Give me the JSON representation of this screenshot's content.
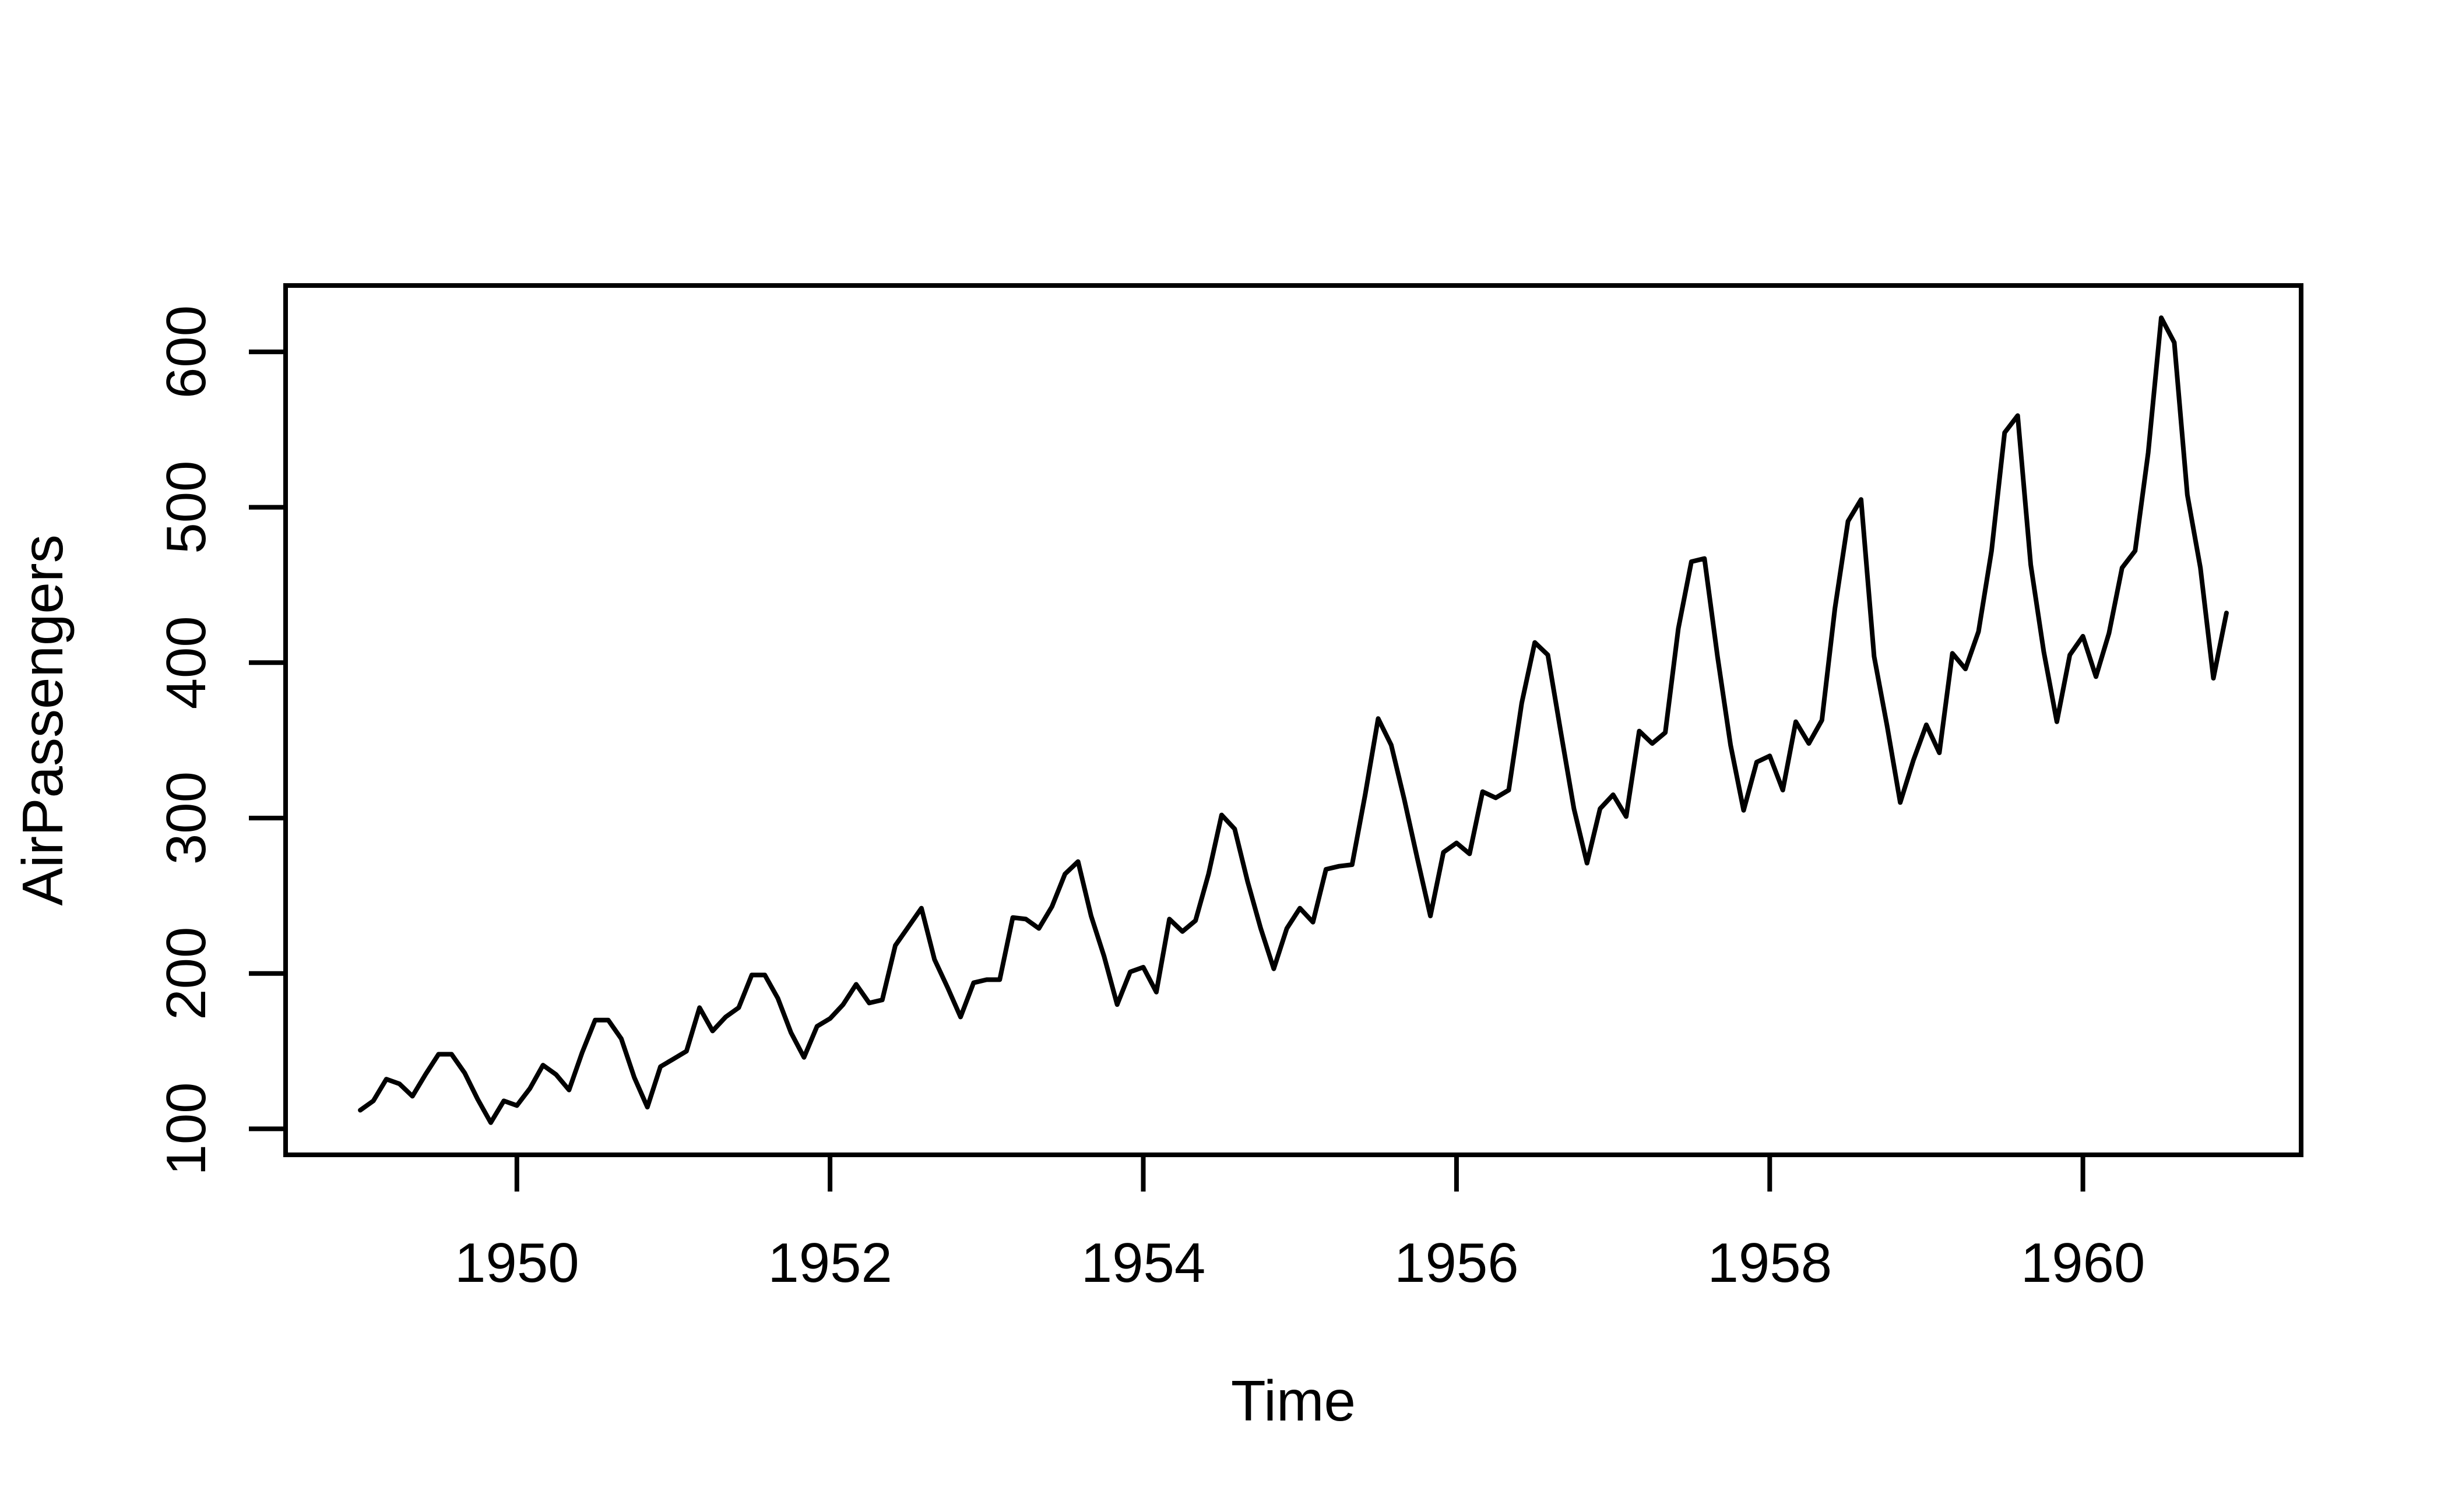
{
  "chart_data": {
    "type": "line",
    "title": "",
    "xlabel": "Time",
    "ylabel": "AirPassengers",
    "series_name": "AirPassengers",
    "x_start": 1949,
    "frequency": 12,
    "values": [
      112,
      118,
      132,
      129,
      121,
      135,
      148,
      148,
      136,
      119,
      104,
      118,
      115,
      126,
      141,
      135,
      125,
      149,
      170,
      170,
      158,
      133,
      114,
      140,
      145,
      150,
      178,
      163,
      172,
      178,
      199,
      199,
      184,
      162,
      146,
      166,
      171,
      180,
      193,
      181,
      183,
      218,
      230,
      242,
      209,
      191,
      172,
      194,
      196,
      196,
      236,
      235,
      229,
      243,
      264,
      272,
      237,
      211,
      180,
      201,
      204,
      188,
      235,
      227,
      234,
      264,
      302,
      293,
      259,
      229,
      203,
      229,
      242,
      233,
      267,
      269,
      270,
      315,
      364,
      347,
      312,
      274,
      237,
      278,
      284,
      277,
      317,
      313,
      318,
      374,
      413,
      405,
      355,
      306,
      271,
      306,
      315,
      301,
      356,
      348,
      355,
      422,
      465,
      467,
      404,
      347,
      305,
      336,
      340,
      318,
      362,
      348,
      363,
      435,
      491,
      505,
      404,
      359,
      310,
      337,
      360,
      342,
      406,
      396,
      420,
      472,
      548,
      559,
      463,
      407,
      362,
      405,
      417,
      391,
      419,
      461,
      472,
      535,
      622,
      606,
      508,
      461,
      390,
      432
    ],
    "x_ticks": [
      1950,
      1952,
      1954,
      1956,
      1958,
      1960
    ],
    "y_ticks": [
      100,
      200,
      300,
      400,
      500,
      600
    ],
    "xlim": [
      1948.5233,
      1961.3933
    ],
    "ylim": [
      83.28,
      642.72
    ],
    "line_color": "#000000",
    "axis_color": "#000000",
    "background": "#ffffff",
    "grid": false,
    "legend": "none"
  }
}
